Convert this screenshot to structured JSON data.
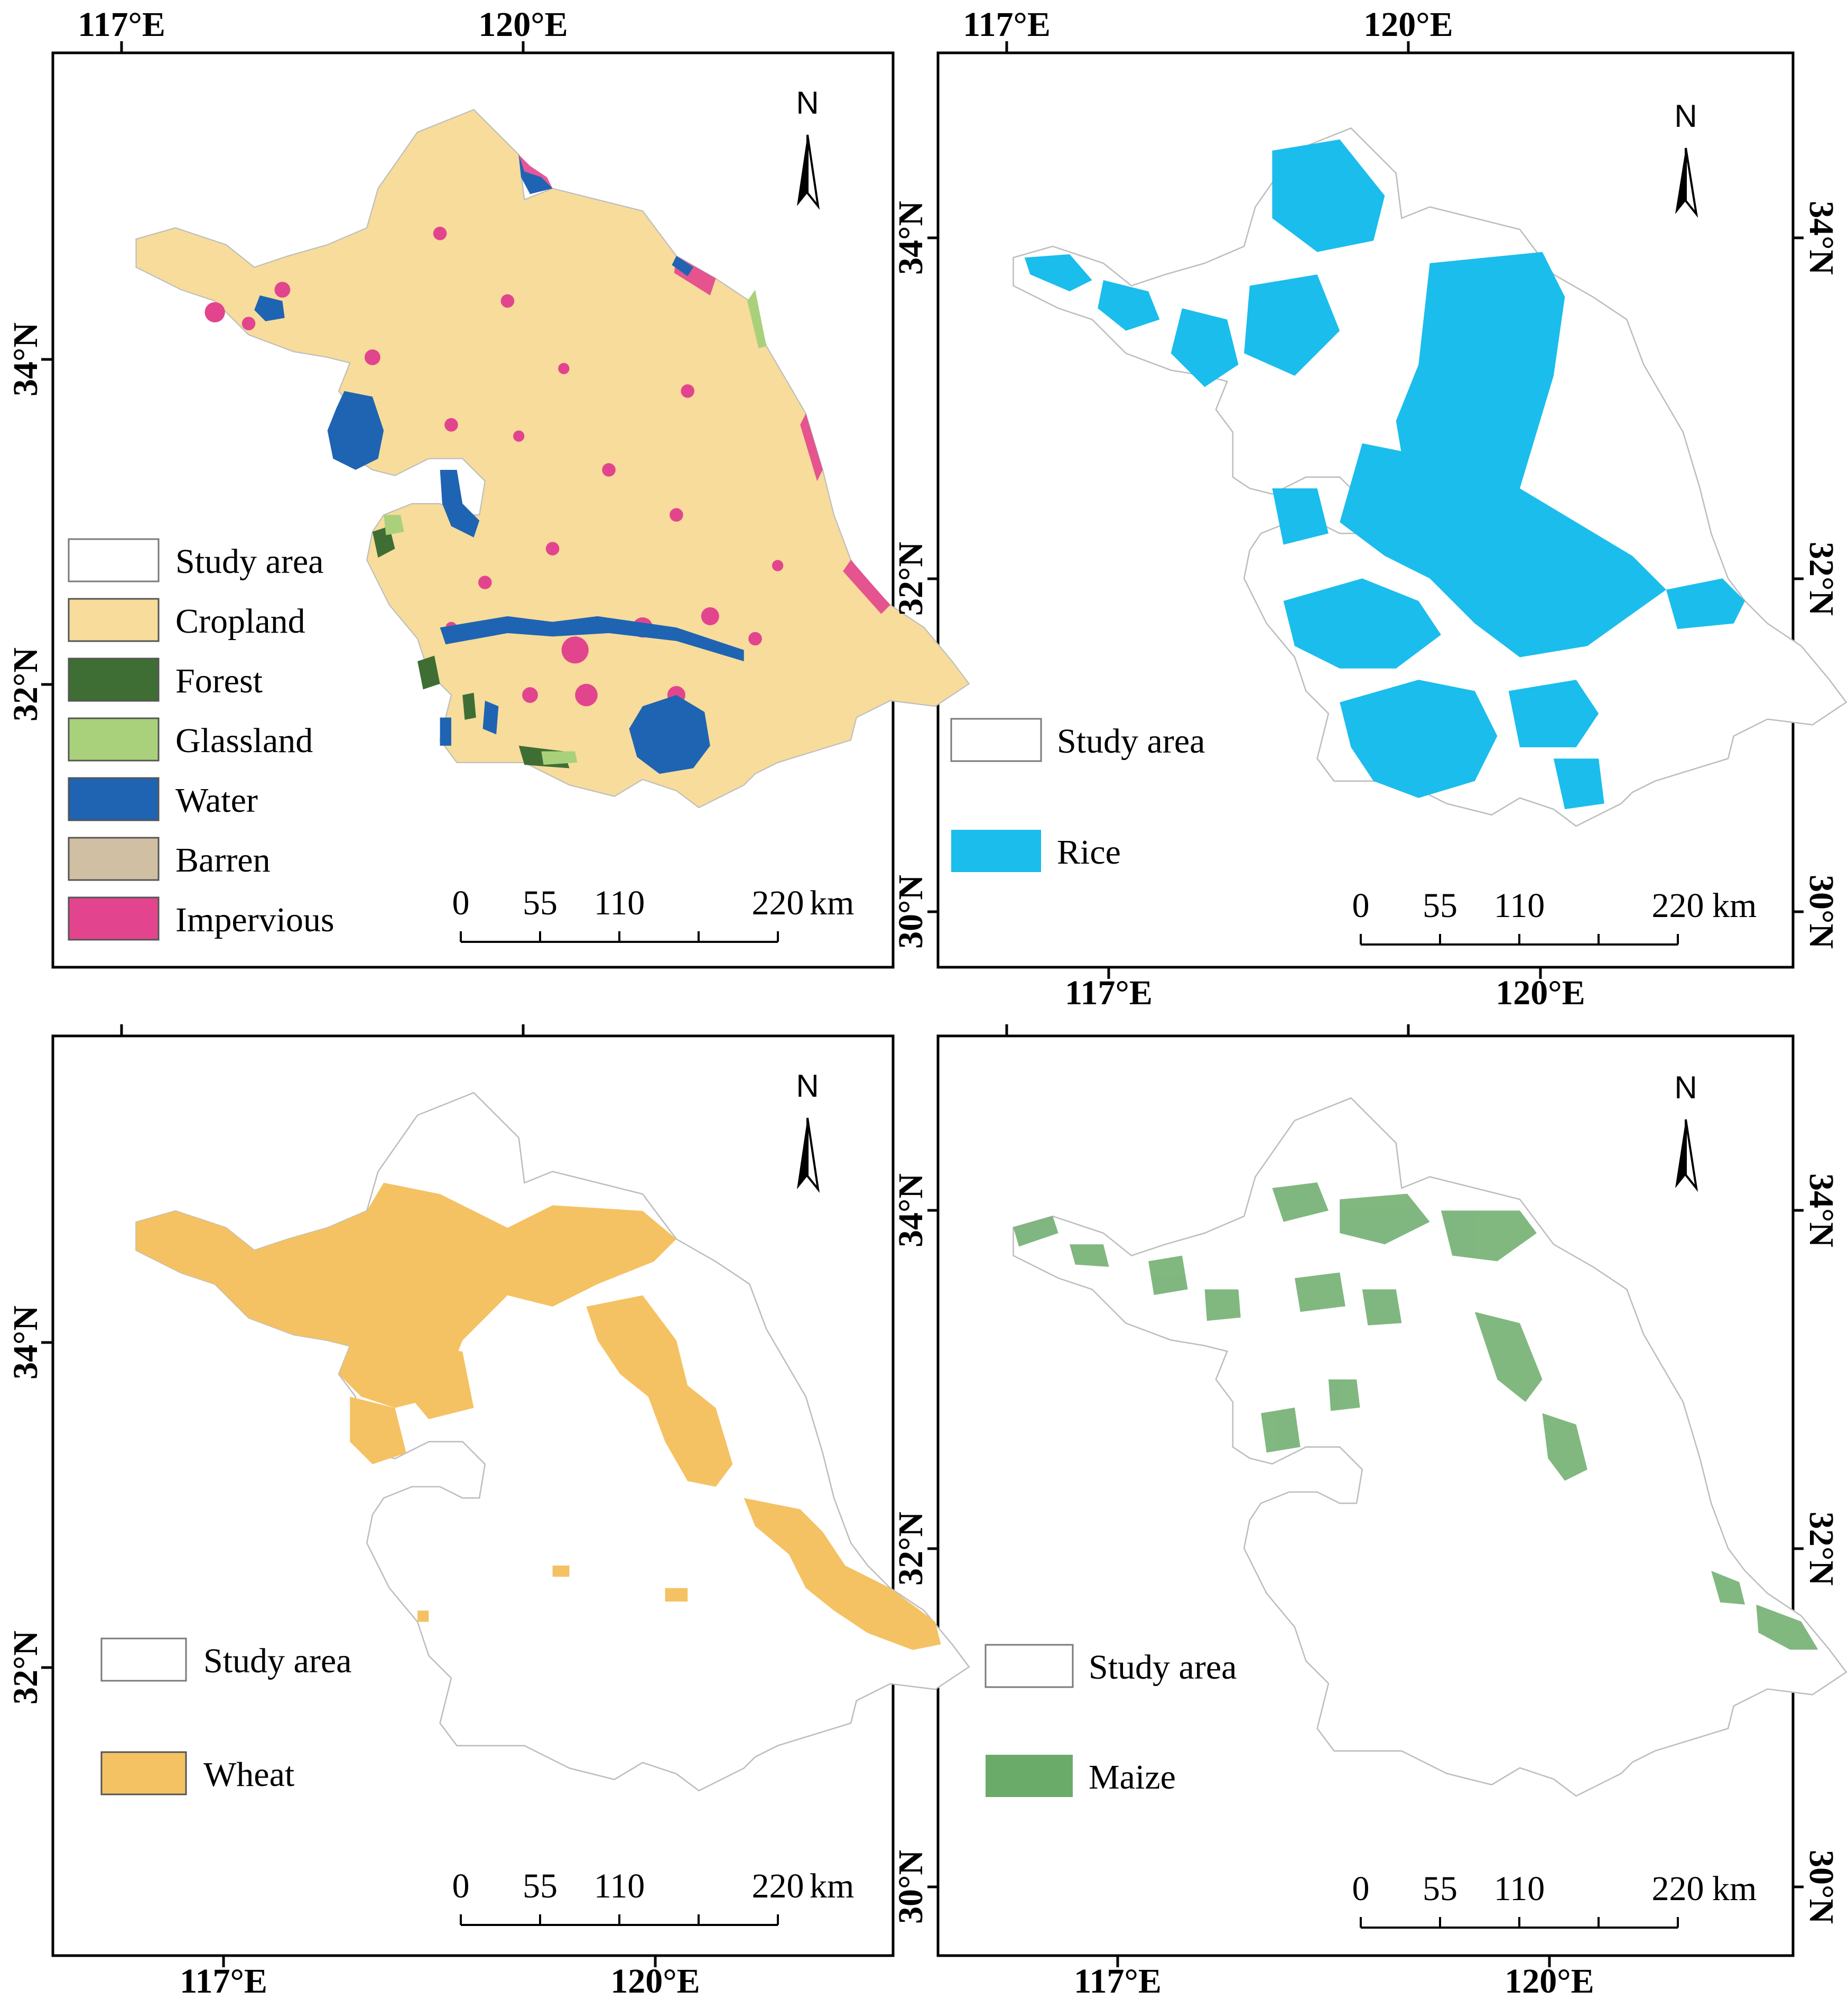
{
  "figure": "Four-panel map of land cover and crop distribution in the study area",
  "colors": {
    "frame": "#000000",
    "boundary": "#bdbdbd",
    "study_area_fill": "#ffffff",
    "cropland": "#f7dc9b",
    "forest": "#3e6e33",
    "glassland": "#a9d17b",
    "water": "#1f64b2",
    "barren": "#d0bfa3",
    "impervious": "#e2458d",
    "rice": "#1bbdec",
    "wheat": "#f4c263",
    "maize": "#6bab6a"
  },
  "north_arrow_label": "N",
  "panels": [
    {
      "id": "landcover",
      "lon_ticks": [
        "117°E",
        "120°E"
      ],
      "lat_ticks": [
        "34°N",
        "32°N"
      ],
      "legend": [
        {
          "label": "Study area",
          "color": "#ffffff"
        },
        {
          "label": "Cropland",
          "color": "#f7dc9b"
        },
        {
          "label": "Forest",
          "color": "#3e6e33"
        },
        {
          "label": "Glassland",
          "color": "#a9d17b"
        },
        {
          "label": "Water",
          "color": "#1f64b2"
        },
        {
          "label": "Barren",
          "color": "#d0bfa3"
        },
        {
          "label": "Impervious",
          "color": "#e2458d"
        }
      ],
      "scale_bar": {
        "labels": [
          "0",
          "55",
          "110",
          "220"
        ],
        "unit": "km"
      }
    },
    {
      "id": "rice",
      "lon_ticks": [
        "117°E",
        "120°E"
      ],
      "lat_ticks": [
        "34°N",
        "32°N",
        "30°N"
      ],
      "legend": [
        {
          "label": "Study area",
          "color": "#ffffff"
        },
        {
          "label": "Rice",
          "color": "#1bbdec"
        }
      ],
      "scale_bar": {
        "labels": [
          "0",
          "55",
          "110",
          "220"
        ],
        "unit": "km"
      }
    },
    {
      "id": "wheat",
      "lon_ticks": [
        "117°E",
        "120°E"
      ],
      "lat_ticks": [
        "34°N",
        "32°N"
      ],
      "legend": [
        {
          "label": "Study area",
          "color": "#ffffff"
        },
        {
          "label": "Wheat",
          "color": "#f4c263"
        }
      ],
      "scale_bar": {
        "labels": [
          "0",
          "55",
          "110",
          "220"
        ],
        "unit": "km"
      }
    },
    {
      "id": "maize",
      "lon_ticks": [
        "117°E",
        "120°E"
      ],
      "lat_ticks": [
        "34°N",
        "32°N",
        "30°N"
      ],
      "legend": [
        {
          "label": "Study area",
          "color": "#ffffff"
        },
        {
          "label": "Maize",
          "color": "#6bab6a"
        }
      ],
      "scale_bar": {
        "labels": [
          "0",
          "55",
          "110",
          "220"
        ],
        "unit": "km"
      }
    }
  ]
}
